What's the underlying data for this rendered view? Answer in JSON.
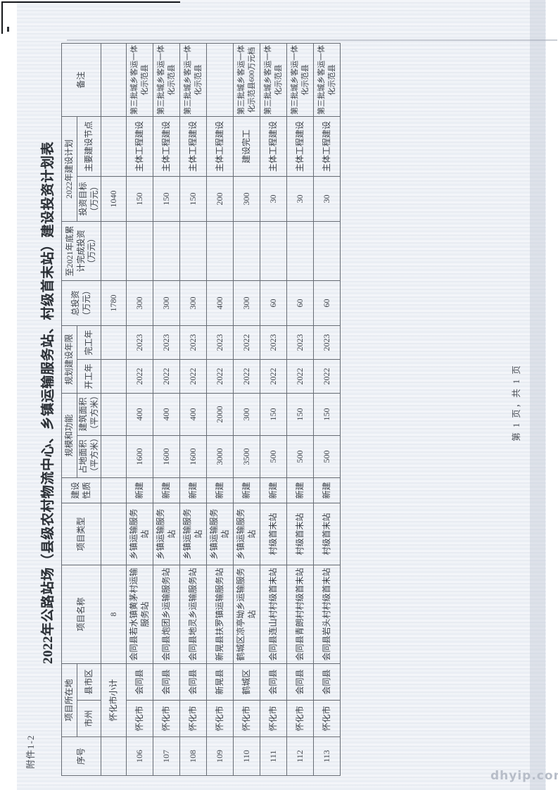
{
  "page": {
    "attachment_label": "附件1-2",
    "title": "2022年公路站场（县级农村物流中心、乡镇运输服务站、村级首末站）建设投资计划表",
    "page_footer": "第 1 页，共 1 页",
    "watermark": "dhyip.com"
  },
  "colors": {
    "paper": "#eef1f6",
    "grid": "#676c74",
    "text": "#3c4148",
    "watermark": "#b7bdc8"
  },
  "table": {
    "header": {
      "serial": "序号",
      "location_group": "项目所在地",
      "city": "市州",
      "county": "县市区",
      "name": "项目名称",
      "type": "项目类型",
      "nature": "建设性质",
      "scale_group": "规模和功能",
      "land_area": "占地面积（平方米）",
      "build_area": "建筑面积（平方米）",
      "years_group": "规划建设年限",
      "start_year": "开工年",
      "end_year": "完工年",
      "total_invest": "总投资（万元）",
      "done_invest": "至2021年底累计完成投资（万元）",
      "plan2022_group": "2022年建设计划",
      "invest_target": "投资目标（万元）",
      "main_node": "主要建设节点",
      "remark": "备注"
    },
    "subtotal": {
      "serial": "",
      "region": "怀化市小计",
      "project_count": "8",
      "total_invest": "1780",
      "invest_target": "1040"
    },
    "field_order": [
      "serial",
      "city",
      "county",
      "name",
      "type",
      "nature",
      "land_area",
      "build_area",
      "start_year",
      "end_year",
      "total_invest",
      "done_invest",
      "invest_target",
      "main_node",
      "remark"
    ],
    "rows": [
      {
        "serial": "106",
        "city": "怀化市",
        "county": "会同县",
        "name": "会同县若水镇黄茅村运输服务站",
        "type": "乡镇运输服务站",
        "nature": "新建",
        "land_area": "1600",
        "build_area": "400",
        "start_year": "2022",
        "end_year": "2023",
        "total_invest": "300",
        "done_invest": "",
        "invest_target": "150",
        "main_node": "主体工程建设",
        "remark": "第三批城乡客运一体化示范县"
      },
      {
        "serial": "107",
        "city": "怀化市",
        "county": "会同县",
        "name": "会同县炮团乡运输服务站",
        "type": "乡镇运输服务站",
        "nature": "新建",
        "land_area": "1600",
        "build_area": "400",
        "start_year": "2022",
        "end_year": "2023",
        "total_invest": "300",
        "done_invest": "",
        "invest_target": "150",
        "main_node": "主体工程建设",
        "remark": "第三批城乡客运一体化示范县"
      },
      {
        "serial": "108",
        "city": "怀化市",
        "county": "会同县",
        "name": "会同县地灵乡运输服务站",
        "type": "乡镇运输服务站",
        "nature": "新建",
        "land_area": "1600",
        "build_area": "400",
        "start_year": "2022",
        "end_year": "2023",
        "total_invest": "300",
        "done_invest": "",
        "invest_target": "150",
        "main_node": "主体工程建设",
        "remark": "第三批城乡客运一体化示范县"
      },
      {
        "serial": "109",
        "city": "怀化市",
        "county": "新晃县",
        "name": "新晃县扶罗镇运输服务站",
        "type": "乡镇运输服务站",
        "nature": "新建",
        "land_area": "3000",
        "build_area": "2000",
        "start_year": "2022",
        "end_year": "2023",
        "total_invest": "400",
        "done_invest": "",
        "invest_target": "200",
        "main_node": "主体工程建设",
        "remark": ""
      },
      {
        "serial": "110",
        "city": "怀化市",
        "county": "鹤城区",
        "name": "鹤城区凉亭坳乡运输服务站",
        "type": "乡镇运输服务站",
        "nature": "新建",
        "land_area": "3500",
        "build_area": "300",
        "start_year": "2022",
        "end_year": "2022",
        "total_invest": "300",
        "done_invest": "",
        "invest_target": "300",
        "main_node": "建设完工",
        "remark": "第三批城乡客运一体化示范县600万元档"
      },
      {
        "serial": "111",
        "city": "怀化市",
        "county": "会同县",
        "name": "会同县连山村村级首末站",
        "type": "村级首末站",
        "nature": "新建",
        "land_area": "500",
        "build_area": "150",
        "start_year": "2022",
        "end_year": "2023",
        "total_invest": "60",
        "done_invest": "",
        "invest_target": "30",
        "main_node": "主体工程建设",
        "remark": "第三批城乡客运一体化示范县"
      },
      {
        "serial": "112",
        "city": "怀化市",
        "county": "会同县",
        "name": "会同县青朗村村级首末站",
        "type": "村级首末站",
        "nature": "新建",
        "land_area": "500",
        "build_area": "150",
        "start_year": "2022",
        "end_year": "2023",
        "total_invest": "60",
        "done_invest": "",
        "invest_target": "30",
        "main_node": "主体工程建设",
        "remark": "第三批城乡客运一体化示范县"
      },
      {
        "serial": "113",
        "city": "怀化市",
        "county": "会同县",
        "name": "会同县岩头村村级首末站",
        "type": "村级首末站",
        "nature": "新建",
        "land_area": "500",
        "build_area": "150",
        "start_year": "2022",
        "end_year": "2023",
        "total_invest": "60",
        "done_invest": "",
        "invest_target": "30",
        "main_node": "主体工程建设",
        "remark": "第三批城乡客运一体化示范县"
      }
    ]
  }
}
